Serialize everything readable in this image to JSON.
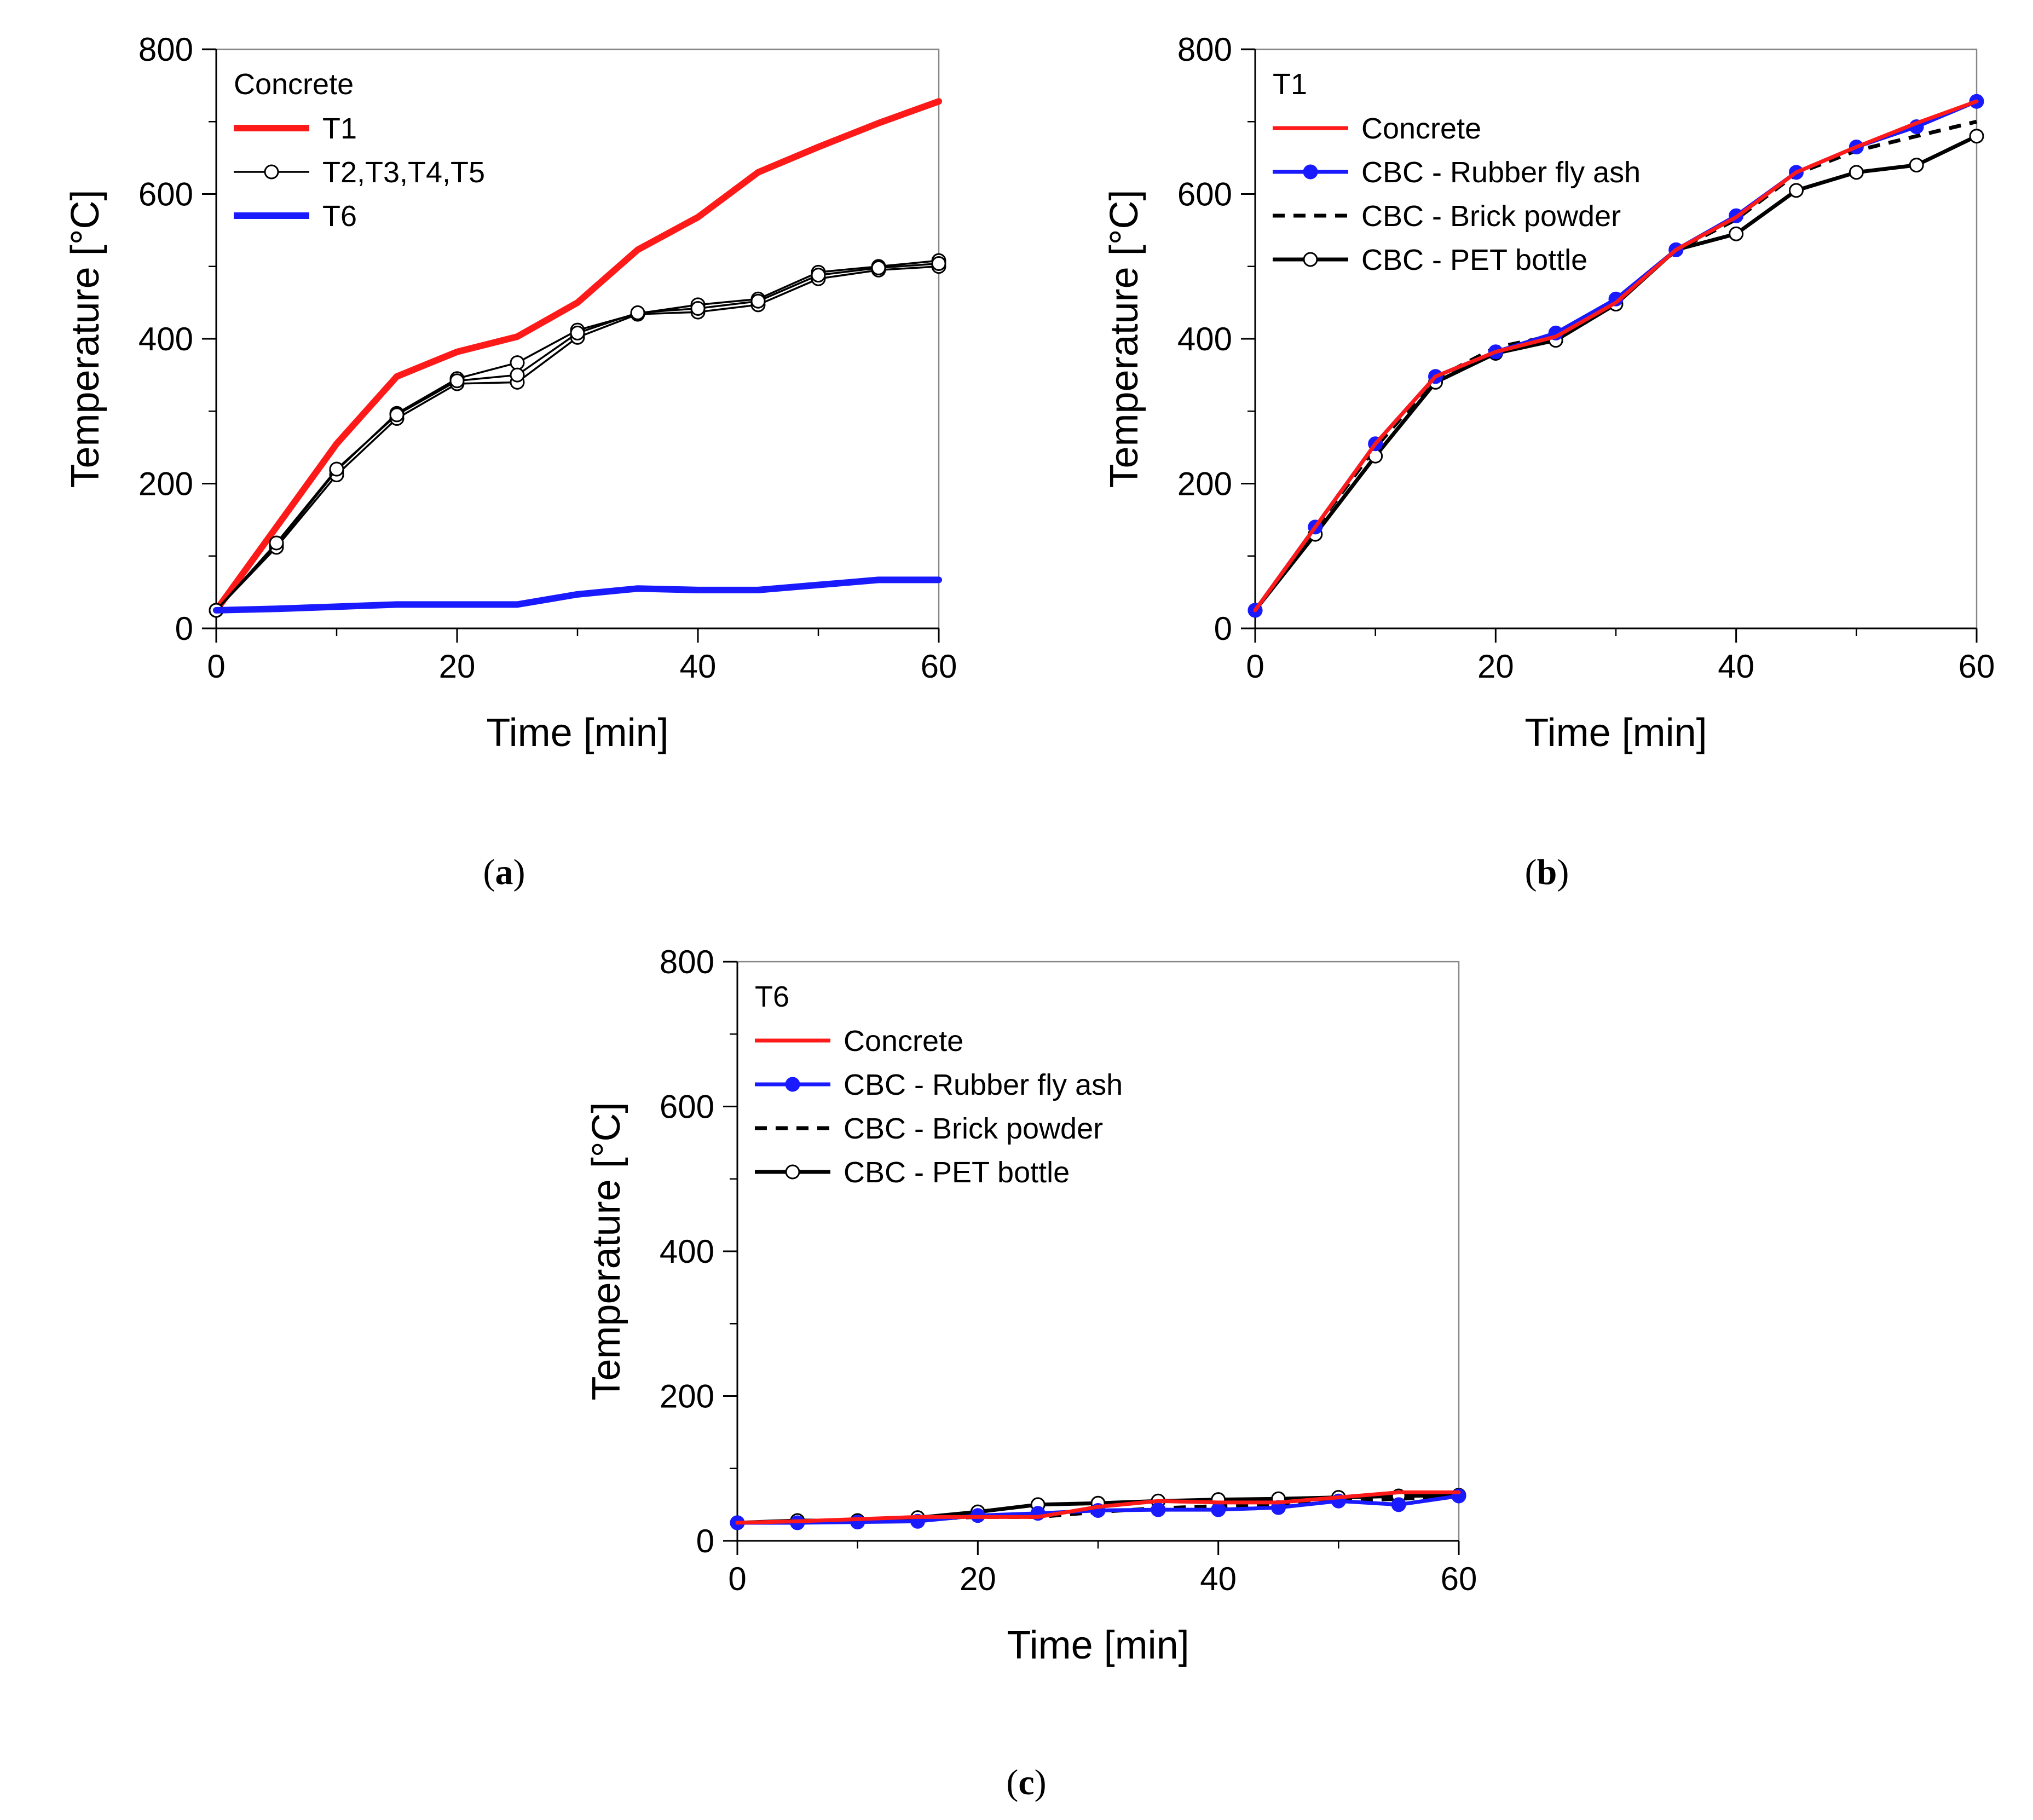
{
  "chart_data": [
    {
      "id": "a",
      "type": "line",
      "caption_letter": "a",
      "xlabel": "Time  [min]",
      "ylabel": "Temperature  [°C]",
      "xlim": [
        0,
        60
      ],
      "ylim": [
        0,
        800
      ],
      "xticks": [
        0,
        20,
        40,
        60
      ],
      "yticks": [
        0,
        200,
        400,
        600,
        800
      ],
      "legend": {
        "title": "Concrete",
        "position": "top-left"
      },
      "series": [
        {
          "name": "T1",
          "legend": true,
          "color": "#ff1a1a",
          "width": "thick",
          "dash": "solid",
          "marker": "none",
          "x": [
            0,
            5,
            10,
            15,
            20,
            25,
            30,
            35,
            40,
            45,
            50,
            55,
            60
          ],
          "y": [
            25,
            140,
            255,
            348,
            382,
            403,
            450,
            523,
            568,
            630,
            665,
            698,
            728
          ]
        },
        {
          "name": "T2,T3,T4,T5",
          "legend": true,
          "color": "#000000",
          "width": "thin",
          "dash": "solid",
          "marker": "open",
          "x": [
            0,
            5,
            10,
            15,
            20,
            25,
            30,
            35,
            40,
            45,
            50,
            55,
            60
          ],
          "y": [
            25,
            115,
            218,
            297,
            345,
            367,
            412,
            435,
            447,
            455,
            492,
            500,
            508
          ]
        },
        {
          "name": "T3",
          "legend": false,
          "color": "#000000",
          "width": "thin",
          "dash": "solid",
          "marker": "open",
          "x": [
            0,
            5,
            10,
            15,
            20,
            25,
            30,
            35,
            40,
            45,
            50,
            55,
            60
          ],
          "y": [
            25,
            112,
            212,
            290,
            338,
            340,
            402,
            434,
            437,
            447,
            483,
            495,
            500
          ]
        },
        {
          "name": "T4",
          "legend": false,
          "color": "#000000",
          "width": "thin",
          "dash": "solid",
          "marker": "open",
          "x": [
            0,
            5,
            10,
            15,
            20,
            25,
            30,
            35,
            40,
            45,
            50,
            55,
            60
          ],
          "y": [
            25,
            118,
            220,
            295,
            342,
            350,
            408,
            436,
            442,
            452,
            488,
            498,
            504
          ]
        },
        {
          "name": "T6",
          "legend": true,
          "color": "#1a1aff",
          "width": "thick",
          "dash": "solid",
          "marker": "none",
          "x": [
            0,
            5,
            10,
            15,
            20,
            25,
            30,
            35,
            40,
            45,
            50,
            55,
            60
          ],
          "y": [
            25,
            27,
            30,
            33,
            33,
            33,
            47,
            55,
            53,
            53,
            60,
            67,
            67
          ]
        }
      ]
    },
    {
      "id": "b",
      "type": "line",
      "caption_letter": "b",
      "xlabel": "Time  [min]",
      "ylabel": "Temperature  [°C]",
      "xlim": [
        0,
        60
      ],
      "ylim": [
        0,
        800
      ],
      "xticks": [
        0,
        20,
        40,
        60
      ],
      "yticks": [
        0,
        200,
        400,
        600,
        800
      ],
      "legend": {
        "title": "T1",
        "position": "top-left"
      },
      "series": [
        {
          "name": "CBC - Brick powder",
          "legend": true,
          "color": "#000000",
          "width": "medium",
          "dash": "dashed",
          "marker": "none",
          "x": [
            0,
            5,
            10,
            15,
            20,
            25,
            30,
            35,
            40,
            45,
            50,
            55,
            60
          ],
          "y": [
            25,
            138,
            250,
            345,
            388,
            405,
            452,
            522,
            565,
            628,
            660,
            680,
            700
          ]
        },
        {
          "name": "CBC - PET bottle",
          "legend": true,
          "color": "#000000",
          "width": "medium",
          "dash": "solid",
          "marker": "open",
          "x": [
            0,
            5,
            10,
            15,
            20,
            25,
            30,
            35,
            40,
            45,
            50,
            55,
            60
          ],
          "y": [
            25,
            130,
            238,
            340,
            380,
            398,
            448,
            523,
            545,
            605,
            630,
            640,
            680
          ]
        },
        {
          "name": "CBC - Rubber fly ash",
          "legend": true,
          "color": "#1a1aff",
          "width": "medium",
          "dash": "solid",
          "marker": "filled",
          "x": [
            0,
            5,
            10,
            15,
            20,
            25,
            30,
            35,
            40,
            45,
            50,
            55,
            60
          ],
          "y": [
            25,
            140,
            255,
            348,
            382,
            408,
            455,
            523,
            570,
            630,
            665,
            693,
            728
          ]
        },
        {
          "name": "Concrete",
          "legend": true,
          "color": "#ff1a1a",
          "width": "medium",
          "dash": "solid",
          "marker": "none",
          "x": [
            0,
            5,
            10,
            15,
            20,
            25,
            30,
            35,
            40,
            45,
            50,
            55,
            60
          ],
          "y": [
            25,
            140,
            255,
            348,
            382,
            403,
            450,
            523,
            568,
            630,
            665,
            698,
            728
          ]
        }
      ],
      "legend_order": [
        "Concrete",
        "CBC - Rubber fly ash",
        "CBC - Brick powder",
        "CBC - PET bottle"
      ]
    },
    {
      "id": "c",
      "type": "line",
      "caption_letter": "c",
      "xlabel": "Time  [min]",
      "ylabel": "Temperature  [°C]",
      "xlim": [
        0,
        60
      ],
      "ylim": [
        0,
        800
      ],
      "xticks": [
        0,
        20,
        40,
        60
      ],
      "yticks": [
        0,
        200,
        400,
        600,
        800
      ],
      "legend": {
        "title": "T6",
        "position": "top-left"
      },
      "series": [
        {
          "name": "CBC - Brick powder",
          "legend": true,
          "color": "#000000",
          "width": "medium",
          "dash": "dashed",
          "marker": "none",
          "x": [
            0,
            5,
            10,
            15,
            20,
            25,
            30,
            35,
            40,
            45,
            50,
            55,
            60
          ],
          "y": [
            25,
            27,
            28,
            30,
            33,
            33,
            40,
            45,
            48,
            50,
            55,
            58,
            62
          ]
        },
        {
          "name": "CBC - PET bottle",
          "legend": true,
          "color": "#000000",
          "width": "medium",
          "dash": "solid",
          "marker": "open",
          "x": [
            0,
            5,
            10,
            15,
            20,
            25,
            30,
            35,
            40,
            45,
            50,
            55,
            60
          ],
          "y": [
            25,
            28,
            28,
            32,
            40,
            50,
            52,
            55,
            57,
            58,
            60,
            62,
            63
          ]
        },
        {
          "name": "CBC - Rubber fly ash",
          "legend": true,
          "color": "#1a1aff",
          "width": "medium",
          "dash": "solid",
          "marker": "filled",
          "x": [
            0,
            5,
            10,
            15,
            20,
            25,
            30,
            35,
            40,
            45,
            50,
            55,
            60
          ],
          "y": [
            25,
            25,
            26,
            27,
            35,
            38,
            42,
            43,
            43,
            46,
            55,
            50,
            62
          ]
        },
        {
          "name": "Concrete",
          "legend": true,
          "color": "#ff1a1a",
          "width": "medium",
          "dash": "solid",
          "marker": "none",
          "x": [
            0,
            5,
            10,
            15,
            20,
            25,
            30,
            35,
            40,
            45,
            50,
            55,
            60
          ],
          "y": [
            25,
            27,
            30,
            33,
            33,
            33,
            47,
            55,
            53,
            53,
            60,
            67,
            67
          ]
        }
      ],
      "legend_order": [
        "Concrete",
        "CBC - Rubber fly ash",
        "CBC - Brick powder",
        "CBC - PET bottle"
      ]
    }
  ]
}
